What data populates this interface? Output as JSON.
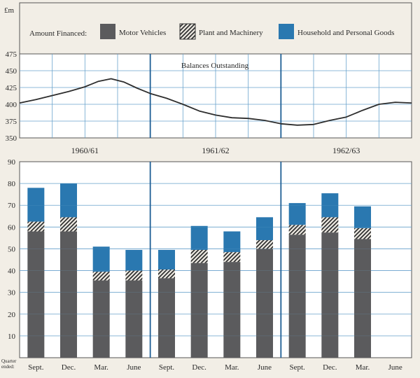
{
  "unit_label": "£m",
  "legend": {
    "title": "Amount Financed:",
    "items": [
      {
        "name": "Motor Vehicles",
        "color": "#5b5b5d",
        "pattern": "solid"
      },
      {
        "name": "Plant and Machinery",
        "color": "#2f2f2f",
        "pattern": "hatch"
      },
      {
        "name": "Household and Personal Goods",
        "color": "#2a78b0",
        "pattern": "solid"
      }
    ]
  },
  "quarter_ended_label": "Quarter ended:",
  "chart_data": [
    {
      "type": "line",
      "title": "Balances Outstanding",
      "ylim": [
        350,
        475
      ],
      "yticks": [
        350,
        375,
        400,
        425,
        450,
        475
      ],
      "periods": [
        "1960/61",
        "1961/62",
        "1962/63"
      ],
      "x_unit": "quarter index (0 = start of 1960/61, 12 = end of 1962/63)",
      "x": [
        0,
        0.5,
        1,
        1.5,
        2,
        2.4,
        2.8,
        3.2,
        3.6,
        4,
        4.5,
        5,
        5.5,
        6,
        6.5,
        7,
        7.5,
        8,
        8.5,
        9,
        9.5,
        10,
        10.5,
        11,
        11.5,
        12
      ],
      "y": [
        402,
        407,
        413,
        419,
        426,
        434,
        438,
        433,
        424,
        416,
        409,
        400,
        390,
        384,
        380,
        379,
        376,
        371,
        369,
        370,
        376,
        381,
        391,
        400,
        403,
        402
      ]
    },
    {
      "type": "bar",
      "stacked": true,
      "ylim": [
        0,
        90
      ],
      "yticks": [
        10,
        20,
        30,
        40,
        50,
        60,
        70,
        80,
        90
      ],
      "categories": [
        "Sept.",
        "Dec.",
        "Mar.",
        "June",
        "Sept.",
        "Dec.",
        "Mar.",
        "June",
        "Sept.",
        "Dec.",
        "Mar.",
        "June"
      ],
      "series": [
        {
          "name": "Motor Vehicles",
          "values": [
            58,
            58,
            35.5,
            35.5,
            36.5,
            43.5,
            44,
            50,
            56.5,
            57.5,
            54.5,
            null
          ]
        },
        {
          "name": "Plant and Machinery",
          "values": [
            4.5,
            6.5,
            4,
            4.5,
            4,
            6,
            4.5,
            4,
            4.5,
            7,
            5,
            null
          ]
        },
        {
          "name": "Household and Personal Goods",
          "values": [
            15.5,
            15.5,
            11.5,
            9.5,
            9,
            11,
            9.5,
            10.5,
            10,
            11,
            10,
            null
          ]
        }
      ]
    }
  ]
}
